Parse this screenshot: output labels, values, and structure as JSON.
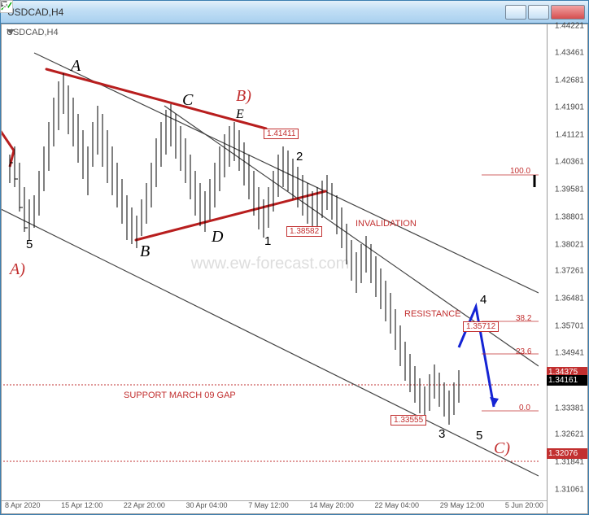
{
  "window": {
    "title": "USDCAD,H4",
    "chart_label": "USDCAD,H4"
  },
  "yaxis": {
    "min": 1.31061,
    "max": 1.44221,
    "ticks": [
      1.44221,
      1.43461,
      1.42681,
      1.41901,
      1.41121,
      1.40361,
      1.39581,
      1.38801,
      1.38021,
      1.37261,
      1.36481,
      1.35701,
      1.34941,
      1.34181,
      1.33381,
      1.32621,
      1.31841,
      1.31061
    ]
  },
  "xaxis": {
    "labels": [
      "8 Apr 2020",
      "15 Apr 12:00",
      "22 Apr 20:00",
      "30 Apr 04:00",
      "7 May 12:00",
      "14 May 20:00",
      "22 May 04:00",
      "29 May 12:00",
      "5 Jun 20:00"
    ]
  },
  "price_markers": {
    "current": {
      "v": "1.34161",
      "c": "#000000"
    },
    "support": {
      "v": "1.34375",
      "c": "#c23030"
    },
    "lower": {
      "v": "1.32076",
      "c": "#c23030"
    }
  },
  "annotations": {
    "wave_A": "A",
    "wave_B": "B",
    "wave_C": "C",
    "wave_D": "D",
    "wave_E": "E",
    "wave_Ap": "A)",
    "wave_Bp": "B)",
    "wave_Cp": "C)",
    "n1": "1",
    "n2": "2",
    "n3": "3",
    "n4": "4",
    "n5": "5",
    "n5b": "5",
    "invalidation": "INVALIDATION",
    "resistance": "RESISTANCE",
    "support_gap": "SUPPORT MARCH 09 GAP",
    "watermark": "www.ew-forecast.com"
  },
  "price_boxes": {
    "p1": "1.41411",
    "p2": "1.38582",
    "p3": "1.35712",
    "p4": "1.33555"
  },
  "fib": {
    "l0": "0.0",
    "l2": "23.6",
    "l3": "38.2",
    "l10": "100.0"
  },
  "colors": {
    "red": "#c23030",
    "darkred": "#b81e1e",
    "blue": "#1524d4",
    "gray": "#777",
    "lightgray": "#bbb",
    "channel": "#444"
  }
}
